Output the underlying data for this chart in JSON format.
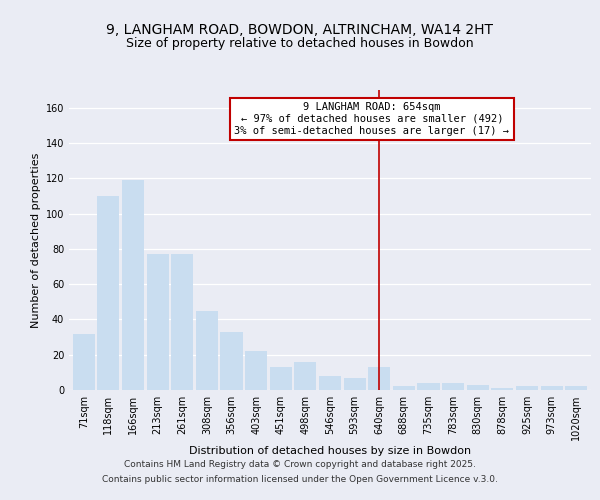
{
  "title": "9, LANGHAM ROAD, BOWDON, ALTRINCHAM, WA14 2HT",
  "subtitle": "Size of property relative to detached houses in Bowdon",
  "xlabel": "Distribution of detached houses by size in Bowdon",
  "ylabel": "Number of detached properties",
  "categories": [
    "71sqm",
    "118sqm",
    "166sqm",
    "213sqm",
    "261sqm",
    "308sqm",
    "356sqm",
    "403sqm",
    "451sqm",
    "498sqm",
    "546sqm",
    "593sqm",
    "640sqm",
    "688sqm",
    "735sqm",
    "783sqm",
    "830sqm",
    "878sqm",
    "925sqm",
    "973sqm",
    "1020sqm"
  ],
  "values": [
    32,
    110,
    119,
    77,
    77,
    45,
    33,
    22,
    13,
    16,
    8,
    7,
    13,
    2,
    4,
    4,
    3,
    1,
    2,
    2,
    2
  ],
  "highlight_index": 12,
  "highlight_color": "#c00000",
  "bar_color": "#c9ddf0",
  "annotation_line1": "9 LANGHAM ROAD: 654sqm",
  "annotation_line2": "← 97% of detached houses are smaller (492)",
  "annotation_line3": "3% of semi-detached houses are larger (17) →",
  "ylim": [
    0,
    170
  ],
  "yticks": [
    0,
    20,
    40,
    60,
    80,
    100,
    120,
    140,
    160
  ],
  "background_color": "#eaecf4",
  "grid_color": "#ffffff",
  "title_fontsize": 10,
  "subtitle_fontsize": 9,
  "axis_label_fontsize": 8,
  "tick_fontsize": 7,
  "annotation_fontsize": 7.5,
  "footer_fontsize": 6.5,
  "footer_line1": "Contains HM Land Registry data © Crown copyright and database right 2025.",
  "footer_line2": "Contains public sector information licensed under the Open Government Licence v.3.0."
}
